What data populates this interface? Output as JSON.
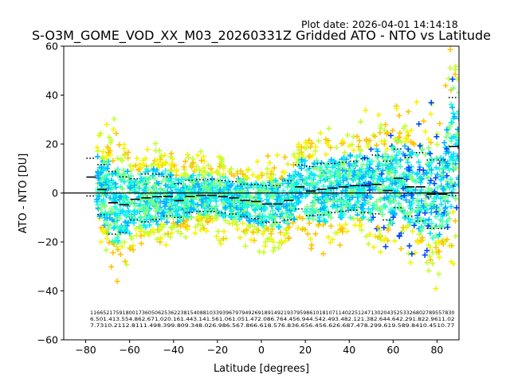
{
  "plot_date": "Plot date: 2026-04-01 14:14:18",
  "chart_data": {
    "type": "scatter",
    "title": "S-O3M_GOME_VOD_XX_M03_20260331Z Gridded ATO - NTO vs Latitude",
    "xlabel": "Latitude [degrees]",
    "ylabel": "ATO - NTO [DU]",
    "xlim": [
      -90,
      90
    ],
    "ylim": [
      -60,
      60
    ],
    "xticks": [
      -80,
      -60,
      -40,
      -20,
      0,
      20,
      40,
      60,
      80
    ],
    "yticks": [
      -60,
      -40,
      -20,
      0,
      20,
      40,
      60
    ],
    "xtick_labels": [
      "−80",
      "−60",
      "−40",
      "−20",
      "0",
      "20",
      "40",
      "60",
      "80"
    ],
    "ytick_labels": [
      "−60",
      "−40",
      "−20",
      "0",
      "20",
      "40",
      "60"
    ],
    "marker": "+",
    "palette": [
      "#00b3ff",
      "#00e5ff",
      "#2effc8",
      "#7dff7a",
      "#c4ff2e",
      "#f5f500",
      "#ffc400",
      "#0044ff"
    ],
    "reference_line": 0,
    "bin_width": 5,
    "bin_centers": [
      -77.5,
      -72.5,
      -67.5,
      -62.5,
      -57.5,
      -52.5,
      -47.5,
      -42.5,
      -37.5,
      -32.5,
      -27.5,
      -22.5,
      -17.5,
      -12.5,
      -7.5,
      -2.5,
      2.5,
      7.5,
      12.5,
      17.5,
      22.5,
      27.5,
      32.5,
      37.5,
      42.5,
      47.5,
      52.5,
      57.5,
      62.5,
      67.5,
      72.5,
      77.5,
      82.5,
      87.5
    ],
    "bin_mean": [
      6.5,
      1.4,
      -4.0,
      -4.8,
      -2.6,
      -2.0,
      -1.5,
      -1.4,
      -3.1,
      -1.4,
      -1.0,
      -1.0,
      -1.5,
      -2.0,
      -3.0,
      -3.5,
      -4.5,
      -4.5,
      -3.0,
      2.5,
      0.8,
      1.5,
      2.0,
      2.5,
      3.0,
      3.0,
      3.5,
      1.0,
      6.0,
      2.5,
      2.5,
      -0.5,
      -0.5,
      19.0
    ],
    "bin_std": [
      7.7,
      10.2,
      12.8,
      11.4,
      8.4,
      9.8,
      9.3,
      8.0,
      6.9,
      6.6,
      6.5,
      6.6,
      6.6,
      6.6,
      6.6,
      7.0,
      7.5,
      7.5,
      8.0,
      9.0,
      10.0,
      10.5,
      10.0,
      10.0,
      10.0,
      11.0,
      12.0,
      12.0,
      12.0,
      12.0,
      14.0,
      14.0,
      14.0,
      20.0
    ],
    "stats_rows": [
      "11665217591800173605062536223815408810339396797949269189149219379598610181071140225124713020435253326802789557830",
      "6.501.413.554.862.671.020.161.443.141.561.061.051.472.086.764.456.944.542.493.482.121.382.644.642.291.822.9611.02",
      "7.7310.2112.8111.498.399.809.348.026.986.567.866.618.576.836.656.456.626.687.478.299.619.589.8410.4510.77"
    ]
  }
}
